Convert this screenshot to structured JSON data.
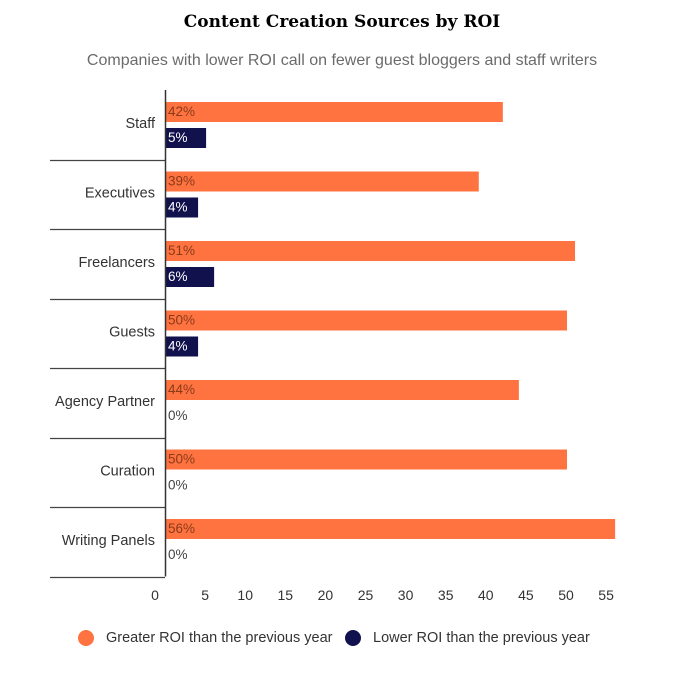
{
  "chart_data": {
    "type": "bar",
    "orientation": "horizontal",
    "title": "Content Creation Sources by ROI",
    "subtitle": "Companies with lower ROI call on fewer guest bloggers and staff writers",
    "categories": [
      "Staff",
      "Executives",
      "Freelancers",
      "Guests",
      "Agency Partner",
      "Curation",
      "Writing Panels"
    ],
    "series": [
      {
        "name": "Greater ROI than the previous year",
        "color": "#ff7340",
        "values": [
          42,
          39,
          51,
          50,
          44,
          50,
          56
        ],
        "labels": [
          "42%",
          "39%",
          "51%",
          "50%",
          "44%",
          "50%",
          "56%"
        ]
      },
      {
        "name": "Lower ROI than the previous year",
        "color": "#11114d",
        "values": [
          5,
          4,
          6,
          4,
          0,
          0,
          0
        ],
        "labels": [
          "5%",
          "4%",
          "6%",
          "4%",
          "0%",
          "0%",
          "0%"
        ]
      }
    ],
    "x_ticks": [
      0,
      5,
      10,
      15,
      20,
      25,
      30,
      35,
      40,
      45,
      50,
      55
    ],
    "xlim": [
      0,
      58
    ],
    "grid": false,
    "legend_position": "bottom"
  }
}
